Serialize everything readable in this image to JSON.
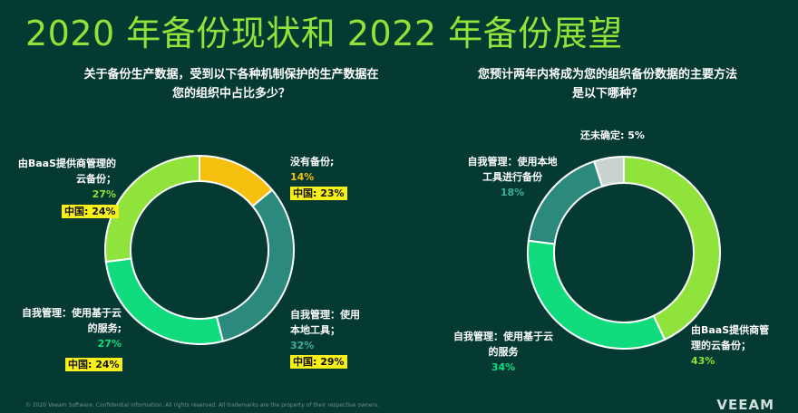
{
  "title": "2020 年备份现状和 2022 年备份展望",
  "left_question": [
    "关于备份生产数据，受到以下各种机制保护的生产数据在",
    "您的组织中占比多少？"
  ],
  "right_question": [
    "您预计两年内将成为您的组织备份数据的主要方法",
    "是以下哪种？"
  ],
  "chart_data": [
    {
      "type": "pie",
      "slices": [
        {
          "label": "没有备份;",
          "value": 14,
          "value_text": "14%",
          "china": "中国: 23%",
          "color": "#f6c10e"
        },
        {
          "label": "自我管理：使用本地工具；",
          "value": 32,
          "value_text": "32%",
          "china": "中国: 29%",
          "color": "#2b8a7c"
        },
        {
          "label": "自我管理：使用基于云的服务;",
          "value": 27,
          "value_text": "27%",
          "china": "中国: 24%",
          "color": "#11dc7d"
        },
        {
          "label": "由BaaS提供商管理的云备份；",
          "value": 27,
          "value_text": "27%",
          "china": "中国: 24%",
          "color": "#8fe33b"
        }
      ]
    },
    {
      "type": "pie",
      "slices": [
        {
          "label": "由BaaS提供商管理的云备份；",
          "value": 43,
          "value_text": "43%",
          "color": "#8fe33b"
        },
        {
          "label": "自我管理：使用基于云的服务",
          "value": 34,
          "value_text": "34%",
          "color": "#11dc7d"
        },
        {
          "label": "自我管理：使用本地工具进行备份",
          "value": 18,
          "value_text": "18%",
          "color": "#2b8a7c"
        },
        {
          "label": "还未确定:",
          "value": 5,
          "value_text": "5%",
          "color": "#c9d2cf"
        }
      ]
    }
  ],
  "labels": {
    "l_none_t": "没有备份;",
    "l_none_p": "14%",
    "l_none_cn": "中国: 23%",
    "l_local_t1": "自我管理：使用",
    "l_local_t2": "本地工具；",
    "l_local_p": "32%",
    "l_local_cn": "中国: 29%",
    "l_cloud_t1": "自我管理：使用基于云",
    "l_cloud_t2": "的服务;",
    "l_cloud_p": "27%",
    "l_cloud_cn": "中国: 24%",
    "l_baas_t1": "由BaaS提供商管理的",
    "l_baas_t2": "云备份；",
    "l_baas_p": "27%",
    "l_baas_cn": "中国: 24%",
    "r_undec_t": "还未确定:",
    "r_undec_p": "5%",
    "r_local_t1": "自我管理：使用本地",
    "r_local_t2": "工具进行备份",
    "r_local_p": "18%",
    "r_cloud_t1": "自我管理：使用基于云",
    "r_cloud_t2": "的服务",
    "r_cloud_p": "34%",
    "r_baas_t1": "由BaaS提供商管",
    "r_baas_t2": "理的云备份；",
    "r_baas_p": "43%"
  },
  "footer": "© 2020 Veeam Software. Confidential information. All rights reserved. All trademarks are the property of their respective owners.",
  "logo": "VEEAM"
}
